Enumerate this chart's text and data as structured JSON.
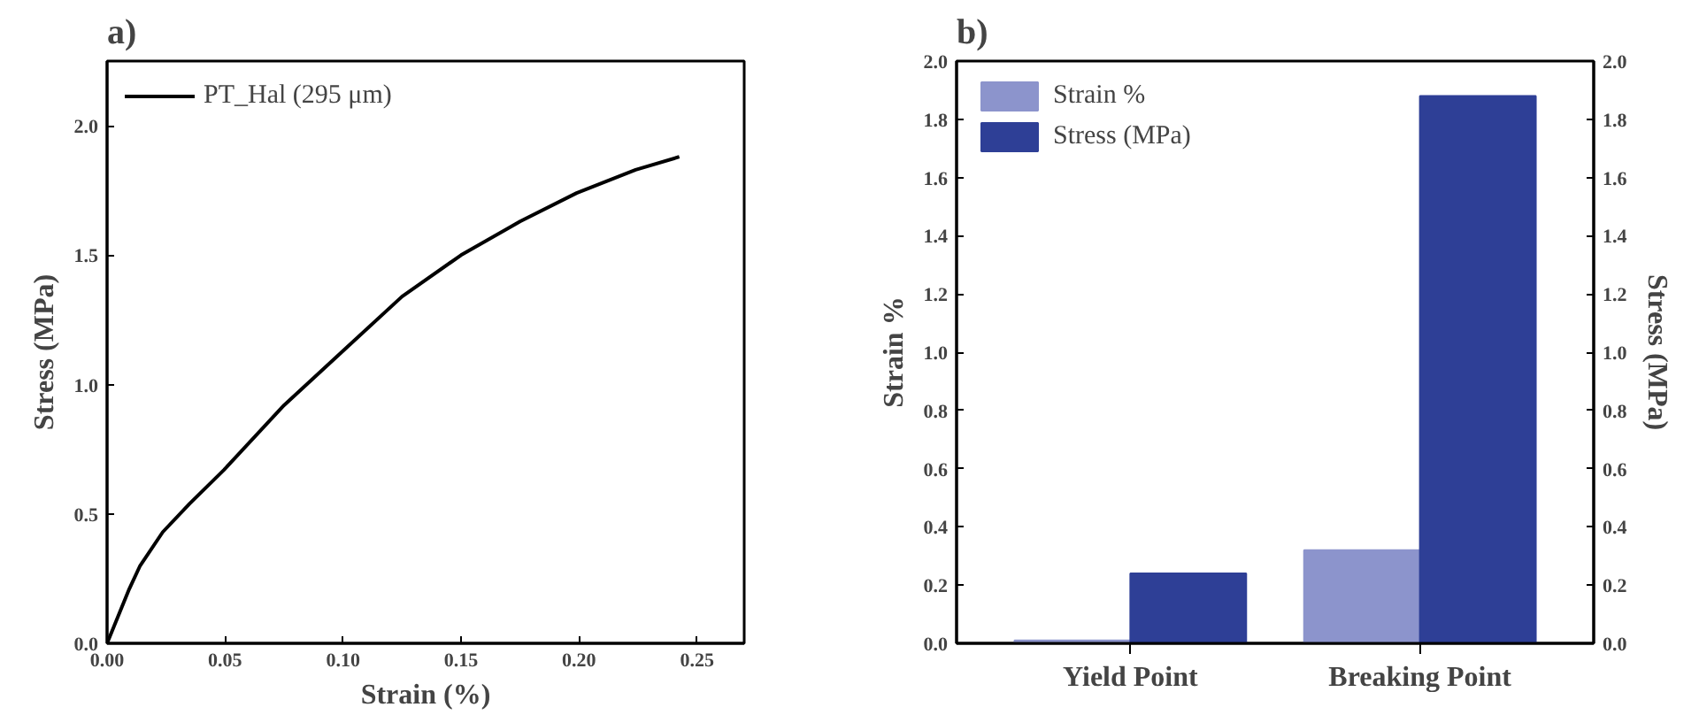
{
  "chart_data": [
    {
      "type": "line",
      "title": "a)",
      "xlabel": "Strain (%)",
      "ylabel": "Stress (MPa)",
      "xlim": [
        0,
        0.27
      ],
      "ylim": [
        0,
        2.25
      ],
      "xticks": [
        {
          "value": 0,
          "label": "0.00"
        },
        0.05,
        {
          "value": 0.1,
          "label": "0.10"
        },
        0.15,
        {
          "value": 0.2,
          "label": "0.20"
        },
        0.25
      ],
      "yticks": [
        {
          "value": 0,
          "label": "0.0"
        },
        0.5,
        {
          "value": 1,
          "label": "1.0"
        },
        1.5,
        {
          "value": 2,
          "label": "2.0"
        }
      ],
      "grid": false,
      "legend": "top left",
      "line_style": "solid",
      "series": [
        {
          "name": "PT_Hal (295 μm)",
          "color": "#000000",
          "x": [
            0,
            0.0094,
            0.014,
            0.0236,
            0.035,
            0.0495,
            0.075,
            0.1,
            0.125,
            0.15,
            0.175,
            0.199,
            0.224,
            0.2425
          ],
          "values": [
            0,
            0.21,
            0.3,
            0.43,
            0.54,
            0.67,
            0.92,
            1.13,
            1.34,
            1.5,
            1.63,
            1.74,
            1.83,
            1.88
          ]
        }
      ]
    },
    {
      "type": "bar",
      "title": "b)",
      "ylabel": "Strain %",
      "y2label": "Stress (MPa)",
      "categories": [
        "Yield Point",
        "Breaking Point"
      ],
      "ylim": [
        0,
        2
      ],
      "yticks": [
        {
          "value": 0,
          "label": "0.0"
        },
        0.2,
        0.4,
        0.6,
        0.8,
        {
          "value": 1,
          "label": "1.0"
        },
        1.2,
        1.4,
        1.6,
        1.8,
        {
          "value": 2,
          "label": "2.0"
        }
      ],
      "y2lim": [
        0,
        2
      ],
      "y2ticks": [
        {
          "value": 0,
          "label": "0.0"
        },
        0.2,
        0.4,
        0.6,
        0.8,
        {
          "value": 1,
          "label": "1.0"
        },
        1.2,
        1.4,
        1.6,
        1.8,
        {
          "value": 2,
          "label": "2.0"
        }
      ],
      "grid": false,
      "legend": "top left",
      "series": [
        {
          "name": "Strain %",
          "color": "#8c94cc",
          "values": [
            0.01,
            0.32
          ]
        },
        {
          "name": "Stress (MPa)",
          "color": "#2e3f96",
          "axis": "y2",
          "values": [
            0.24,
            1.88
          ]
        }
      ]
    }
  ]
}
